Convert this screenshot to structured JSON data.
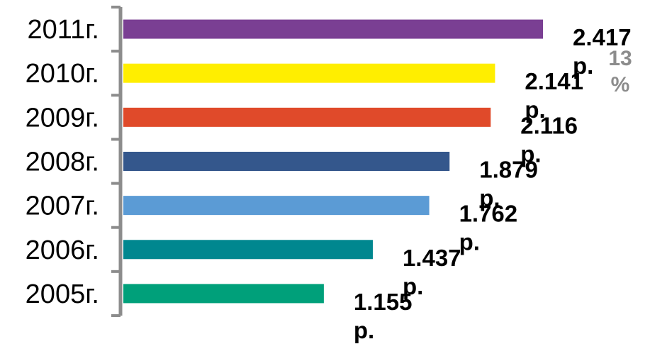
{
  "chart_data": {
    "type": "bar",
    "orientation": "horizontal",
    "categories": [
      "2011г.",
      "2010г.",
      "2009г.",
      "2008г.",
      "2007г.",
      "2006г.",
      "2005г."
    ],
    "values": [
      2.417,
      2.141,
      2.116,
      1.879,
      1.762,
      1.437,
      1.155
    ],
    "data_labels": [
      [
        "2.417",
        "р."
      ],
      [
        "2.141",
        "р."
      ],
      [
        "2.116",
        "р."
      ],
      [
        "1.879",
        "р."
      ],
      [
        "1.762",
        "р."
      ],
      [
        "1.437",
        "р."
      ],
      [
        "1.155",
        "р."
      ]
    ],
    "colors": [
      "#7a3f93",
      "#ffee00",
      "#e04a2a",
      "#34578c",
      "#5b9bd5",
      "#00878f",
      "#00a07a"
    ],
    "xlim": [
      0,
      2.417
    ],
    "grid": false,
    "legend": "none"
  },
  "annotations": {
    "side_label": [
      "13",
      "%"
    ],
    "side_color": "#8c8c8c"
  },
  "colors": {
    "axis": "#8c8c8c",
    "label_text": "#000000",
    "background": "#ffffff"
  }
}
